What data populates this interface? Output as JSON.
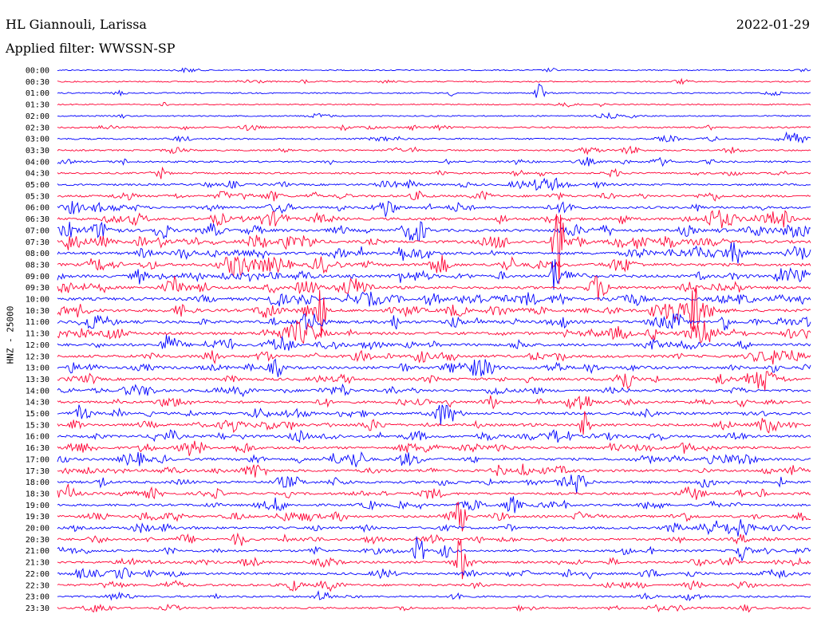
{
  "header": {
    "station": "HL Giannouli, Larissa",
    "date": "2022-01-29",
    "filter": "Applied filter: WWSSN-SP"
  },
  "chart_data": {
    "type": "line",
    "ylabel": "HNZ - 25000",
    "rows": [
      "00:00",
      "00:30",
      "01:00",
      "01:30",
      "02:00",
      "02:30",
      "03:00",
      "03:30",
      "04:00",
      "04:30",
      "05:00",
      "05:30",
      "06:00",
      "06:30",
      "07:00",
      "07:30",
      "08:00",
      "08:30",
      "09:00",
      "09:30",
      "10:00",
      "10:30",
      "11:00",
      "11:30",
      "12:00",
      "12:30",
      "13:00",
      "13:30",
      "14:00",
      "14:30",
      "15:00",
      "15:30",
      "16:00",
      "16:30",
      "17:00",
      "17:30",
      "18:00",
      "18:30",
      "19:00",
      "19:30",
      "20:00",
      "20:30",
      "21:00",
      "21:30",
      "22:00",
      "22:30",
      "23:00",
      "23:30"
    ],
    "colors": [
      "#0000ff",
      "#ff0033"
    ],
    "activity": [
      0.1,
      0.15,
      0.15,
      0.1,
      0.15,
      0.3,
      0.3,
      0.3,
      0.4,
      0.35,
      0.45,
      0.55,
      0.65,
      0.8,
      0.85,
      0.9,
      0.85,
      0.85,
      0.85,
      0.85,
      0.9,
      0.9,
      0.9,
      0.85,
      0.8,
      0.8,
      0.8,
      0.8,
      0.75,
      0.7,
      0.7,
      0.7,
      0.7,
      0.7,
      0.7,
      0.7,
      0.7,
      0.65,
      0.6,
      0.6,
      0.65,
      0.6,
      0.6,
      0.6,
      0.6,
      0.55,
      0.4,
      0.35
    ],
    "events": [
      {
        "row": 15,
        "x": 0.665,
        "amp": 70
      },
      {
        "row": 21,
        "x": 0.845,
        "amp": 55
      },
      {
        "row": 2,
        "x": 0.64,
        "amp": 14
      },
      {
        "row": 21,
        "x": 0.35,
        "amp": 30
      },
      {
        "row": 31,
        "x": 0.7,
        "amp": 18
      },
      {
        "row": 43,
        "x": 0.535,
        "amp": 30
      },
      {
        "row": 42,
        "x": 0.48,
        "amp": 25
      },
      {
        "row": 39,
        "x": 0.535,
        "amp": 16
      },
      {
        "row": 18,
        "x": 0.66,
        "amp": 24
      }
    ]
  }
}
